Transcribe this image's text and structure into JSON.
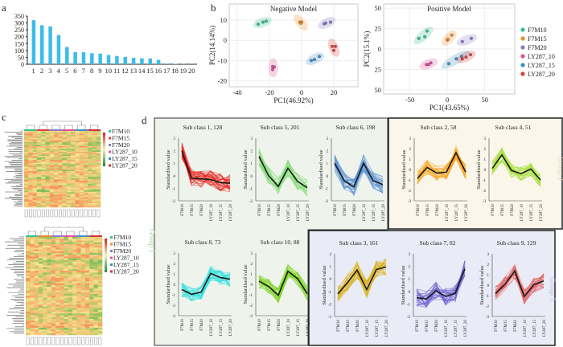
{
  "panel_labels": {
    "a": "a",
    "b": "b",
    "c": "c",
    "d": "d"
  },
  "chart_data": [
    {
      "id": "a",
      "type": "bar",
      "categories": [
        "1",
        "2",
        "3",
        "4",
        "5",
        "6",
        "7",
        "8",
        "9",
        "10",
        "11",
        "12",
        "13",
        "14",
        "15",
        "16",
        "17",
        "18",
        "19",
        "20"
      ],
      "values": [
        320,
        283,
        275,
        212,
        125,
        88,
        87,
        80,
        77,
        67,
        60,
        53,
        47,
        43,
        42,
        32,
        5,
        3,
        2,
        1
      ],
      "yticks": [
        "0",
        "50",
        "100",
        "150",
        "200",
        "250",
        "300",
        "350"
      ],
      "ylim": [
        0,
        350
      ],
      "color": "#3cbde8"
    },
    {
      "id": "b-negative",
      "type": "scatter",
      "title": "Negative Model",
      "xlabel": "PC1(46.92%)",
      "ylabel": "PC2(14.14%)",
      "xlim": [
        -45,
        35
      ],
      "ylim": [
        -23,
        18
      ],
      "xticks": [
        "-40",
        "-20",
        "0",
        "20"
      ],
      "xtick_values": [
        -40,
        -20,
        0,
        20
      ],
      "yticks": [
        "-20",
        "-10",
        "0",
        "10"
      ],
      "ytick_values": [
        -20,
        -10,
        0,
        10
      ],
      "series": [
        {
          "name": "F7M10",
          "color": "#3cbf8f",
          "points": [
            [
              -27,
              8
            ],
            [
              -24,
              9
            ],
            [
              -22,
              9.5
            ]
          ]
        },
        {
          "name": "F7M15",
          "color": "#f08a2c",
          "points": [
            [
              -1,
              9
            ],
            [
              0,
              9
            ],
            [
              -0.5,
              8.5
            ]
          ]
        },
        {
          "name": "F7M20",
          "color": "#8a7cc8",
          "points": [
            [
              14,
              8.2
            ],
            [
              18,
              9
            ],
            [
              15,
              8.6
            ]
          ]
        },
        {
          "name": "LY287_10",
          "color": "#e0509a",
          "points": [
            [
              -18,
              -13
            ],
            [
              -17,
              -13.2
            ],
            [
              -18,
              -14.5
            ]
          ]
        },
        {
          "name": "LY287_15",
          "color": "#3f8fc6",
          "points": [
            [
              6,
              -10
            ],
            [
              8,
              -9.5
            ],
            [
              11,
              -8
            ]
          ]
        },
        {
          "name": "LY287_20",
          "color": "#e0403c",
          "points": [
            [
              19,
              -3
            ],
            [
              21,
              -3
            ],
            [
              20,
              -5
            ]
          ]
        }
      ]
    },
    {
      "id": "b-positive",
      "type": "scatter",
      "title": "Positive Model",
      "xlabel": "PC1(43.65%)",
      "ylabel": "PC2(15.1%)",
      "xlim": [
        -85,
        90
      ],
      "ylim": [
        -55,
        55
      ],
      "xticks": [
        "-50",
        "0",
        "50"
      ],
      "xtick_values": [
        -50,
        0,
        50
      ],
      "yticks": [
        "50",
        "25",
        "0",
        "25",
        "50"
      ],
      "ytick_values": [
        50,
        25,
        0,
        -25,
        -50
      ],
      "series": [
        {
          "name": "F7M10",
          "color": "#3cbf8f",
          "points": [
            [
              -38,
              13
            ],
            [
              -30,
              15
            ],
            [
              -27,
              22
            ]
          ]
        },
        {
          "name": "F7M15",
          "color": "#f08a2c",
          "points": [
            [
              0,
              11
            ],
            [
              1,
              12
            ],
            [
              6,
              17
            ]
          ]
        },
        {
          "name": "F7M20",
          "color": "#8a7cc8",
          "points": [
            [
              20,
              9
            ],
            [
              32,
              13
            ]
          ]
        },
        {
          "name": "LY287_10",
          "color": "#e0509a",
          "points": [
            [
              -28,
              -19
            ],
            [
              -25,
              -19
            ],
            [
              -22,
              -17
            ]
          ]
        },
        {
          "name": "LY287_15",
          "color": "#3f8fc6",
          "points": [
            [
              2,
              -18
            ],
            [
              12,
              -12
            ],
            [
              19,
              -9
            ]
          ]
        },
        {
          "name": "LY287_20",
          "color": "#e0403c",
          "points": [
            [
              20,
              -12
            ],
            [
              25,
              -10
            ],
            [
              31,
              -7
            ]
          ]
        }
      ]
    },
    {
      "id": "d",
      "type": "line",
      "x_categories": [
        "F7M10",
        "F7M15",
        "F7M20",
        "LY287_10",
        "LY287_15",
        "LY287_20"
      ],
      "ylabel": "Standardised value",
      "clusters": [
        {
          "title": "Sub class 1, 128",
          "group": 1,
          "color": "#e8231f",
          "ylim": [
            -2,
            3
          ],
          "mean": [
            2,
            -0.2,
            -0.25,
            -0.3,
            -0.55,
            -0.6
          ]
        },
        {
          "title": "Sub class 5, 201",
          "group": 1,
          "color": "#86dc7a",
          "ylim": [
            -2,
            3
          ],
          "mean": [
            1.55,
            0,
            -0.85,
            0.6,
            -0.45,
            -0.95
          ]
        },
        {
          "title": "Sub class 6, 198",
          "group": 1,
          "color": "#5b8fd6",
          "ylim": [
            -2,
            3
          ],
          "mean": [
            1,
            -0.4,
            -0.9,
            1.0,
            -0.4,
            -0.7
          ]
        },
        {
          "title": "Sub class 2, 58",
          "group": 2,
          "color": "#f5a623",
          "ylim": [
            -3,
            3
          ],
          "mean": [
            -0.85,
            0.2,
            -0.35,
            -0.25,
            1.6,
            -0.25
          ]
        },
        {
          "title": "Sub class 4, 51",
          "group": 2,
          "color": "#a6e03c",
          "ylim": [
            -3,
            3
          ],
          "mean": [
            0.1,
            1.4,
            -0.1,
            -0.4,
            0.05,
            -1.0
          ]
        },
        {
          "title": "Sub class 8, 73",
          "group": 1,
          "color": "#2fe0e0",
          "ylim": [
            -3,
            3
          ],
          "mean": [
            -0.5,
            -0.95,
            -0.75,
            1.05,
            0.65,
            0.5
          ]
        },
        {
          "title": "Sub class 10, 88",
          "group": 1,
          "color": "#7ed321",
          "ylim": [
            -3,
            3
          ],
          "mean": [
            0.3,
            -0.2,
            -1.05,
            1.25,
            0.55,
            -0.9
          ]
        },
        {
          "title": "Sub class 3, 161",
          "group": 3,
          "color": "#d8b21e",
          "ylim": [
            -3,
            2
          ],
          "mean": [
            -1.2,
            -0.3,
            0.7,
            -0.85,
            0.75,
            0.95
          ]
        },
        {
          "title": "Sub class 7, 82",
          "group": 3,
          "color": "#6f5fd0",
          "ylim": [
            -2,
            3
          ],
          "mean": [
            -0.5,
            -0.6,
            0.05,
            -0.4,
            -0.15,
            1.8
          ]
        },
        {
          "title": "Sub class 9, 129",
          "group": 3,
          "color": "#e06262",
          "ylim": [
            -3,
            3
          ],
          "mean": [
            -0.8,
            0.1,
            1.35,
            -1.1,
            0.05,
            0.4
          ]
        }
      ],
      "groups": [
        {
          "label": "Group 1",
          "color": "#a8d59a",
          "bg": "#eef4ec"
        },
        {
          "label": "Group 2",
          "color": "#e9d6b6",
          "bg": "#fbf6ea"
        },
        {
          "label": "Group 3",
          "color": "#b8bfe0",
          "bg": "#e9ebf6"
        }
      ]
    }
  ],
  "heatmaps": {
    "negative_label": "Negative Model",
    "positive_label": "Positive Model",
    "legend": [
      {
        "name": "F7M10",
        "color": "#3cbf8f"
      },
      {
        "name": "F7M15",
        "color": "#e0403c"
      },
      {
        "name": "F7M20",
        "color": "#8a7cc8"
      },
      {
        "name": "LY287_10",
        "color": "#e0509a"
      },
      {
        "name": "LY287_15",
        "color": "#3f8fc6"
      },
      {
        "name": "LY287_20",
        "color": "#d0303a"
      }
    ],
    "legend_positive": [
      {
        "name": "F7M10",
        "color": "#3cbf8f"
      },
      {
        "name": "F7M15",
        "color": "#f08a2c"
      },
      {
        "name": "F7M20",
        "color": "#8a7cc8"
      },
      {
        "name": "LY287_10",
        "color": "#e0509a"
      },
      {
        "name": "LY287_15",
        "color": "#3f8fc6"
      },
      {
        "name": "LY287_20",
        "color": "#d0303a"
      }
    ]
  }
}
